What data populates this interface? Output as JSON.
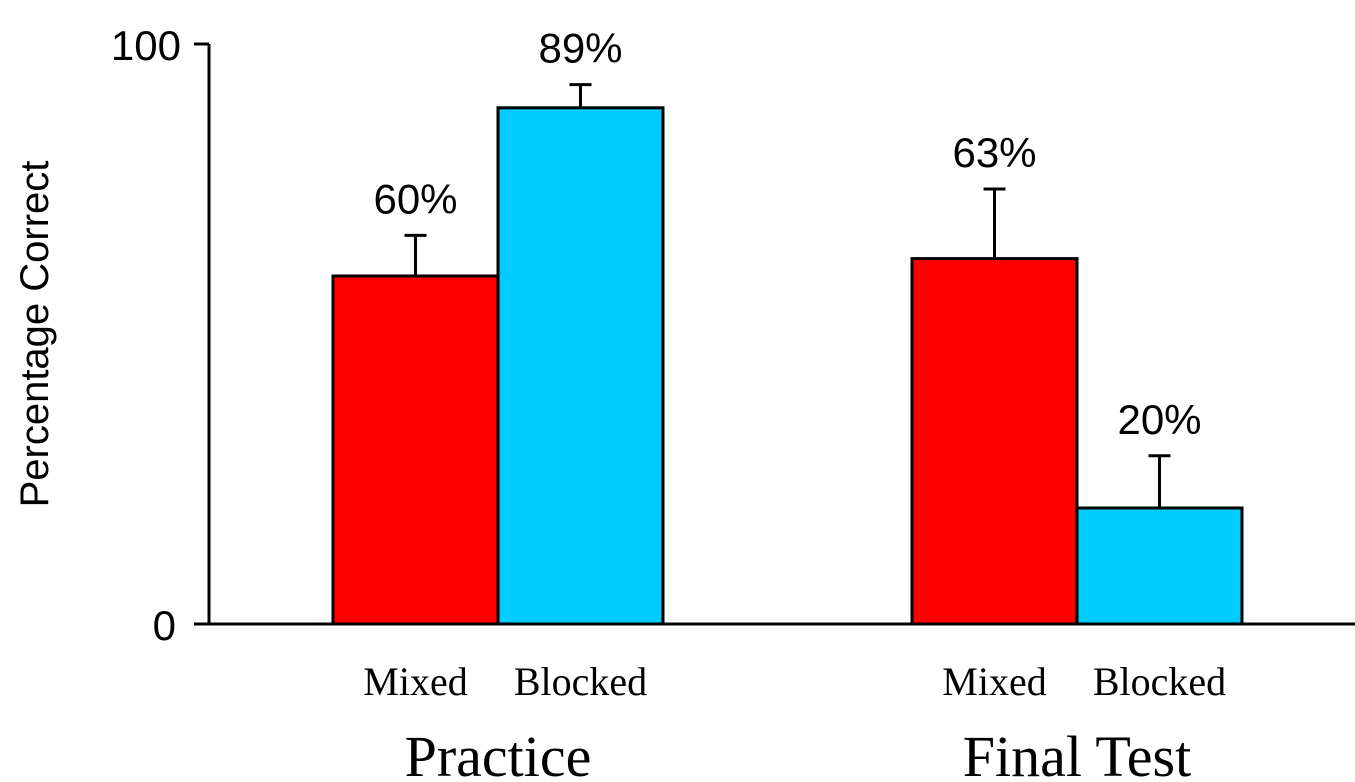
{
  "chart_data": {
    "type": "bar",
    "ylabel": "Percentage Correct",
    "ylim": [
      0,
      100
    ],
    "yticks": [
      "0",
      "100"
    ],
    "groups": [
      {
        "name": "Practice",
        "bars": [
          {
            "label": "Mixed",
            "value": 60,
            "error": 7,
            "value_label": "60%",
            "color": "#ff0000"
          },
          {
            "label": "Blocked",
            "value": 89,
            "error": 4,
            "value_label": "89%",
            "color": "#00ccff"
          }
        ]
      },
      {
        "name": "Final Test",
        "bars": [
          {
            "label": "Mixed",
            "value": 63,
            "error": 12,
            "value_label": "63%",
            "color": "#ff0000"
          },
          {
            "label": "Blocked",
            "value": 20,
            "error": 9,
            "value_label": "20%",
            "color": "#00ccff"
          }
        ]
      }
    ]
  }
}
